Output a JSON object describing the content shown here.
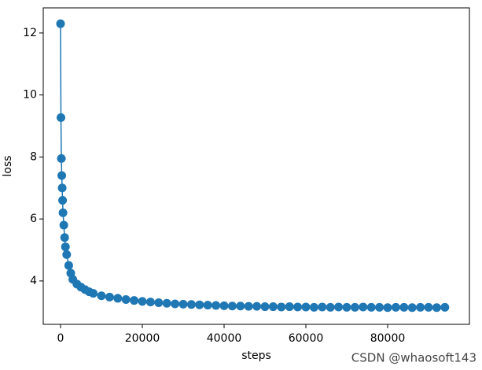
{
  "chart_data": {
    "type": "line",
    "xlabel": "steps",
    "ylabel": "loss",
    "watermark": "CSDN @whaosoft143",
    "xlim": [
      -4230,
      100000
    ],
    "ylim": [
      2.6,
      12.81
    ],
    "xticks": [
      0,
      20000,
      40000,
      60000,
      80000
    ],
    "yticks": [
      4,
      6,
      8,
      10,
      12
    ],
    "series": [
      {
        "name": "loss",
        "color": "#1f77b4",
        "x": [
          0,
          100,
          200,
          300,
          400,
          500,
          600,
          800,
          1000,
          1200,
          1500,
          2000,
          2500,
          3000,
          4000,
          5000,
          6000,
          7000,
          8000,
          10000,
          12000,
          14000,
          16000,
          18000,
          20000,
          22000,
          24000,
          26000,
          28000,
          30000,
          32000,
          34000,
          36000,
          38000,
          40000,
          42000,
          44000,
          46000,
          48000,
          50000,
          52000,
          54000,
          56000,
          58000,
          60000,
          62000,
          64000,
          66000,
          68000,
          70000,
          72000,
          74000,
          76000,
          78000,
          80000,
          82000,
          84000,
          86000,
          88000,
          90000,
          92000,
          94000
        ],
        "values": [
          12.3,
          9.27,
          7.95,
          7.4,
          7.0,
          6.6,
          6.2,
          5.8,
          5.4,
          5.1,
          4.85,
          4.5,
          4.25,
          4.05,
          3.9,
          3.8,
          3.72,
          3.65,
          3.6,
          3.52,
          3.48,
          3.44,
          3.4,
          3.37,
          3.34,
          3.32,
          3.3,
          3.28,
          3.26,
          3.25,
          3.24,
          3.23,
          3.22,
          3.21,
          3.2,
          3.19,
          3.19,
          3.18,
          3.18,
          3.17,
          3.17,
          3.16,
          3.17,
          3.16,
          3.16,
          3.15,
          3.16,
          3.15,
          3.16,
          3.15,
          3.15,
          3.16,
          3.15,
          3.15,
          3.14,
          3.15,
          3.15,
          3.14,
          3.15,
          3.15,
          3.14,
          3.15
        ]
      }
    ]
  }
}
